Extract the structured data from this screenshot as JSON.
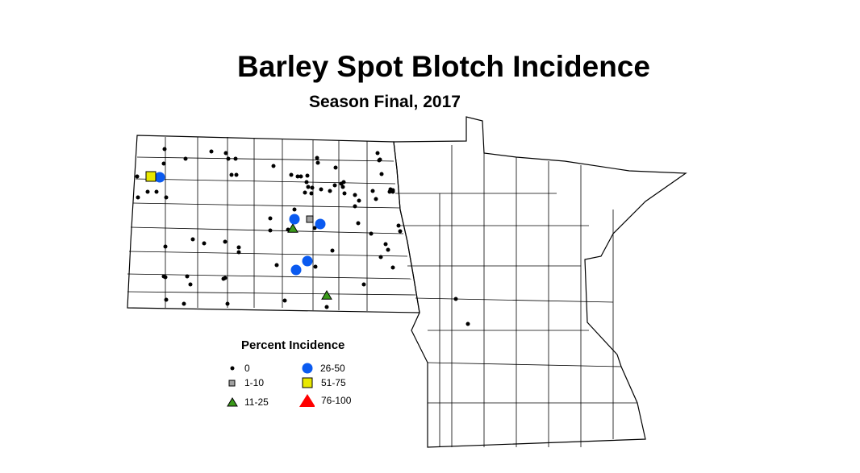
{
  "title": "Barley Spot Blotch Incidence",
  "subtitle": "Season Final, 2017",
  "legend": {
    "title": "Percent Incidence",
    "items": [
      {
        "label": "0",
        "symbol": "small-dot",
        "color": "#000000"
      },
      {
        "label": "1-10",
        "symbol": "square",
        "color": "#a0a0a0"
      },
      {
        "label": "11-25",
        "symbol": "triangle",
        "color": "#3a9a1a"
      },
      {
        "label": "26-50",
        "symbol": "circle",
        "color": "#0a5af0"
      },
      {
        "label": "51-75",
        "symbol": "square",
        "color": "#e8e800"
      },
      {
        "label": "76-100",
        "symbol": "triangle",
        "color": "#ff0000"
      }
    ]
  }
}
